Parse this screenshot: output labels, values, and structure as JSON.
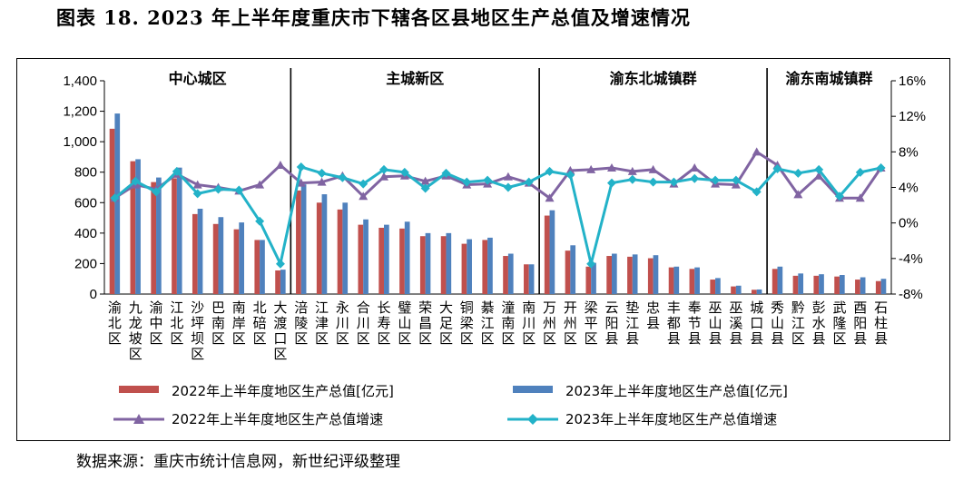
{
  "title": "图表 18. 2023 年上半年度重庆市下辖各区县地区生产总值及增速情况",
  "source": "数据来源：重庆市统计信息网，新世纪评级整理",
  "colors": {
    "bar2022": "#c0504d",
    "bar2023": "#4f81bd",
    "line2022": "#8064a2",
    "line2023": "#23b2c8"
  },
  "chart_data": {
    "type": "bar",
    "title": "",
    "groups": [
      {
        "label": "中心城区",
        "start": 0,
        "end": 8
      },
      {
        "label": "主城新区",
        "start": 9,
        "end": 20
      },
      {
        "label": "渝东北城镇群",
        "start": 21,
        "end": 31
      },
      {
        "label": "渝东南城镇群",
        "start": 32,
        "end": 37
      }
    ],
    "categories": [
      "渝北区",
      "九龙坡区",
      "渝中区",
      "江北区",
      "沙坪坝区",
      "巴南区",
      "南岸区",
      "北碚区",
      "大渡口区",
      "涪陵区",
      "江津区",
      "永川区",
      "合川区",
      "长寿区",
      "璧山区",
      "荣昌区",
      "大足区",
      "铜梁区",
      "綦江区",
      "潼南区",
      "南川区",
      "万州区",
      "开州区",
      "梁平区",
      "云阳县",
      "垫江县",
      "忠县",
      "丰都县",
      "奉节县",
      "巫山县",
      "巫溪县",
      "城口县",
      "秀山县",
      "黔江区",
      "彭水县",
      "武隆区",
      "酉阳县",
      "石柱县"
    ],
    "yleft": {
      "min": 0,
      "max": 1400,
      "step": 200,
      "ticks": [
        "0",
        "200",
        "400",
        "600",
        "800",
        "1,000",
        "1,200",
        "1,400"
      ]
    },
    "yright": {
      "min": -8,
      "max": 16,
      "step": 4,
      "ticks": [
        "-8%",
        "-4%",
        "0%",
        "4%",
        "8%",
        "12%",
        "16%"
      ]
    },
    "series": [
      {
        "name": "2022年上半年度地区生产总值[亿元]",
        "kind": "bar",
        "axis": "left",
        "values": [
          1085,
          872,
          735,
          760,
          525,
          460,
          425,
          355,
          155,
          680,
          600,
          555,
          455,
          435,
          430,
          380,
          380,
          330,
          355,
          250,
          195,
          515,
          285,
          180,
          250,
          245,
          235,
          175,
          165,
          95,
          50,
          28,
          165,
          120,
          120,
          115,
          95,
          85
        ]
      },
      {
        "name": "2023年上半年度地区生产总值[亿元]",
        "kind": "bar",
        "axis": "left",
        "values": [
          1185,
          885,
          765,
          830,
          560,
          505,
          470,
          355,
          160,
          720,
          655,
          600,
          490,
          455,
          475,
          400,
          400,
          360,
          370,
          265,
          195,
          550,
          320,
          205,
          265,
          260,
          255,
          180,
          175,
          105,
          55,
          30,
          180,
          135,
          130,
          125,
          110,
          100
        ]
      },
      {
        "name": "2022年上半年度地区生产总值增速",
        "kind": "line",
        "axis": "right",
        "marker": "triangle",
        "values": [
          2.8,
          4.3,
          3.8,
          5.5,
          4.3,
          4.0,
          3.6,
          4.3,
          6.5,
          4.5,
          4.6,
          5.3,
          3.0,
          5.2,
          5.3,
          4.7,
          5.3,
          4.3,
          4.4,
          5.2,
          4.5,
          2.8,
          5.9,
          6.0,
          6.2,
          5.8,
          6.0,
          4.4,
          6.2,
          4.4,
          4.3,
          8.0,
          6.5,
          3.2,
          5.3,
          2.8,
          2.8,
          6.2
        ]
      },
      {
        "name": "2023年上半年度地区生产总值增速",
        "kind": "line",
        "axis": "right",
        "marker": "diamond",
        "values": [
          2.8,
          4.7,
          3.5,
          5.8,
          3.3,
          3.8,
          3.7,
          0.2,
          -4.6,
          6.3,
          5.6,
          5.1,
          4.4,
          6.0,
          5.7,
          3.9,
          5.6,
          4.6,
          4.8,
          4.0,
          4.6,
          5.8,
          5.4,
          -4.6,
          4.5,
          4.9,
          4.6,
          4.6,
          5.0,
          4.8,
          4.8,
          3.5,
          6.1,
          5.6,
          6.0,
          3.0,
          5.7,
          6.2
        ]
      }
    ]
  }
}
